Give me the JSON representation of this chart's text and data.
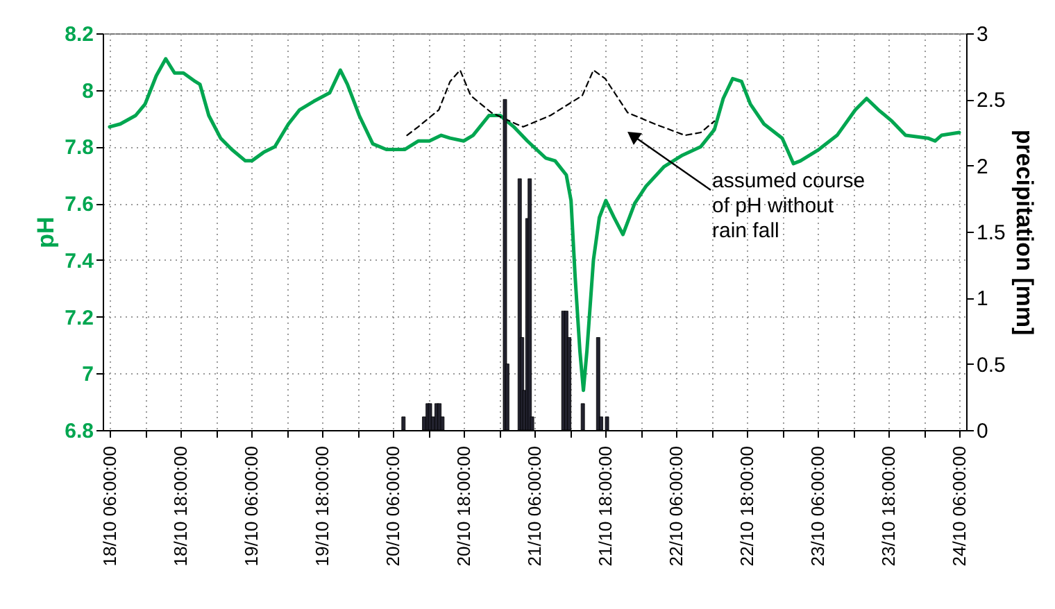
{
  "chart_data": {
    "type": "line",
    "ylabel": "pH",
    "y2label": "precipitation [mm]",
    "xlim": [
      "--10-18T06:00",
      "--10-24T06:00"
    ],
    "xticks": [
      {
        "value": "--10-18T06:00",
        "label": "18/10 06:00:00"
      },
      {
        "value": "--10-18T12:00",
        "label": null
      },
      {
        "value": "--10-18T18:00",
        "label": "18/10 18:00:00"
      },
      {
        "value": "--10-19T00:00",
        "label": null
      },
      {
        "value": "--10-19T06:00",
        "label": "19/10 06:00:00"
      },
      {
        "value": "--10-19T12:00",
        "label": null
      },
      {
        "value": "--10-19T18:00",
        "label": "19/10 18:00:00"
      },
      {
        "value": "--10-20T00:00",
        "label": null
      },
      {
        "value": "--10-20T06:00",
        "label": "20/10 06:00:00"
      },
      {
        "value": "--10-20T12:00",
        "label": null
      },
      {
        "value": "--10-20T18:00",
        "label": "20/10 18:00:00"
      },
      {
        "value": "--10-21T00:00",
        "label": null
      },
      {
        "value": "--10-21T06:00",
        "label": "21/10 06:00:00"
      },
      {
        "value": "--10-21T12:00",
        "label": null
      },
      {
        "value": "--10-21T18:00",
        "label": "21/10 18:00:00"
      },
      {
        "value": "--10-22T00:00",
        "label": null
      },
      {
        "value": "--10-22T06:00",
        "label": "22/10 06:00:00"
      },
      {
        "value": "--10-22T12:00",
        "label": null
      },
      {
        "value": "--10-22T18:00",
        "label": "22/10 18:00:00"
      },
      {
        "value": "--10-23T00:00",
        "label": null
      },
      {
        "value": "--10-23T06:00",
        "label": "23/10 06:00:00"
      },
      {
        "value": "--10-23T12:00",
        "label": null
      },
      {
        "value": "--10-23T18:00",
        "label": "23/10 18:00:00"
      },
      {
        "value": "--10-24T00:00",
        "label": null
      },
      {
        "value": "--10-24T06:00",
        "label": "24/10 06:00:00"
      }
    ],
    "ylim": [
      6.8,
      8.2
    ],
    "yticks": [
      6.8,
      7,
      7.2,
      7.4,
      7.6,
      7.8,
      8,
      8.2
    ],
    "y2lim": [
      0,
      3
    ],
    "y2ticks": [
      0,
      0.5,
      1,
      1.5,
      2,
      2.5,
      3
    ],
    "grid": true,
    "annotations": [
      "assumed course of pH without rain fall"
    ],
    "series": [
      {
        "color": "#00a650",
        "line_style": "solid",
        "x": [
          "--10-18T06:00",
          "--10-18T07:48",
          "--10-18T10:24",
          "--10-18T12:00",
          "--10-18T13:54",
          "--10-18T15:30",
          "--10-18T17:00",
          "--10-18T18:30",
          "--10-18T20:30",
          "--10-18T21:18",
          "--10-18T22:48",
          "--10-19T00:48",
          "--10-19T02:42",
          "--10-19T05:00",
          "--10-19T06:06",
          "--10-19T08:06",
          "--10-19T10:00",
          "--10-19T12:18",
          "--10-19T14:12",
          "--10-19T16:36",
          "--10-19T19:18",
          "--10-19T21:06",
          "--10-19T22:18",
          "--10-20T00:18",
          "--10-20T02:36",
          "--10-20T04:54",
          "--10-20T08:00",
          "--10-20T10:18",
          "--10-20T12:12",
          "--10-20T14:12",
          "--10-20T15:42",
          "--10-20T18:00",
          "--10-20T19:36",
          "--10-20T22:18",
          "--10-21T00:12",
          "--10-21T02:30",
          "--10-21T04:48",
          "--10-21T07:54",
          "--10-21T09:30",
          "--10-21T11:24",
          "--10-21T12:12",
          "--10-21T12:54",
          "--10-21T13:42",
          "--10-21T14:18",
          "--10-21T14:54",
          "--10-21T16:00",
          "--10-21T17:00",
          "--10-21T18:06",
          "--10-21T19:30",
          "--10-21T21:00",
          "--10-21T23:00",
          "--10-22T00:54",
          "--10-22T04:00",
          "--10-22T07:06",
          "--10-22T10:12",
          "--10-22T12:30",
          "--10-22T14:00",
          "--10-22T15:36",
          "--10-22T17:06",
          "--10-22T18:36",
          "--10-22T20:54",
          "--10-23T00:00",
          "--10-23T01:54",
          "--10-23T03:06",
          "--10-23T06:12",
          "--10-23T09:18",
          "--10-23T12:24",
          "--10-23T14:18",
          "--10-23T16:18",
          "--10-23T18:36",
          "--10-23T20:54",
          "--10-24T00:42",
          "--10-24T01:54",
          "--10-24T03:00",
          "--10-24T06:00"
        ],
        "values": [
          7.87,
          7.88,
          7.91,
          7.95,
          8.05,
          8.11,
          8.06,
          8.06,
          8.03,
          8.02,
          7.91,
          7.83,
          7.79,
          7.75,
          7.75,
          7.78,
          7.8,
          7.88,
          7.93,
          7.96,
          7.99,
          8.07,
          8.02,
          7.91,
          7.81,
          7.79,
          7.79,
          7.82,
          7.82,
          7.84,
          7.83,
          7.82,
          7.84,
          7.91,
          7.91,
          7.87,
          7.82,
          7.76,
          7.75,
          7.7,
          7.61,
          7.34,
          7.08,
          6.94,
          7.08,
          7.4,
          7.55,
          7.61,
          7.55,
          7.49,
          7.6,
          7.66,
          7.73,
          7.77,
          7.8,
          7.86,
          7.97,
          8.04,
          8.03,
          7.95,
          7.88,
          7.83,
          7.74,
          7.75,
          7.79,
          7.84,
          7.93,
          7.97,
          7.93,
          7.89,
          7.84,
          7.83,
          7.82,
          7.84,
          7.85
        ]
      },
      {
        "color": "#000000",
        "line_style": "dashed",
        "x": [
          "--10-20T08:24",
          "--10-20T10:18",
          "--10-20T13:48",
          "--10-20T15:42",
          "--10-20T17:24",
          "--10-20T19:12",
          "--10-20T22:42",
          "--10-21T02:54",
          "--10-21T04:06",
          "--10-21T08:42",
          "--10-21T14:06",
          "--10-21T16:00",
          "--10-21T18:00",
          "--10-21T21:48",
          "--10-22T02:24",
          "--10-22T07:30",
          "--10-22T10:12",
          "--10-22T12:30"
        ],
        "values": [
          7.84,
          7.87,
          7.93,
          8.03,
          8.07,
          7.98,
          7.92,
          7.88,
          7.87,
          7.91,
          7.98,
          8.07,
          8.04,
          7.92,
          7.88,
          7.84,
          7.85,
          7.89
        ]
      },
      {
        "type": "bar",
        "axis": "y2",
        "color": "#22222e",
        "x": [
          "--10-20T07:48",
          "--10-20T11:18",
          "--10-20T11:54",
          "--10-20T12:18",
          "--10-20T12:48",
          "--10-20T13:24",
          "--10-20T13:54",
          "--10-20T14:24",
          "--10-21T01:00",
          "--10-21T01:24",
          "--10-21T03:30",
          "--10-21T03:54",
          "--10-21T04:18",
          "--10-21T04:48",
          "--10-21T05:12",
          "--10-21T05:36",
          "--10-21T10:54",
          "--10-21T11:24",
          "--10-21T11:54",
          "--10-21T14:12",
          "--10-21T16:48",
          "--10-21T17:18",
          "--10-21T18:18"
        ],
        "values": [
          0.1,
          0.1,
          0.2,
          0.2,
          0.1,
          0.2,
          0.2,
          0.1,
          2.5,
          0.5,
          1.9,
          0.7,
          0.3,
          1.6,
          1.9,
          0.1,
          0.9,
          0.9,
          0.7,
          0.2,
          0.7,
          0.1,
          0.1
        ]
      }
    ]
  }
}
